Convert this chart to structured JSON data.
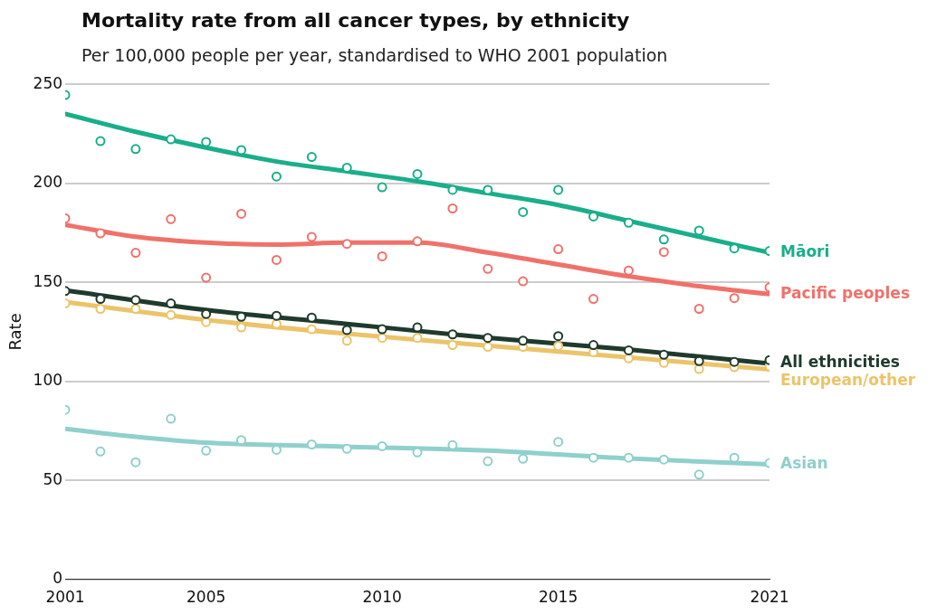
{
  "chart_data": {
    "type": "line",
    "title": "Mortality rate from all cancer types, by ethnicity",
    "subtitle": "Per 100,000 people per year, standardised to WHO 2001 population",
    "ylabel": "Rate",
    "x": [
      2001,
      2002,
      2003,
      2004,
      2005,
      2006,
      2007,
      2008,
      2009,
      2010,
      2011,
      2012,
      2013,
      2014,
      2015,
      2016,
      2017,
      2018,
      2019,
      2020,
      2021
    ],
    "xlim": [
      2001,
      2021
    ],
    "xticks": [
      2001,
      2005,
      2010,
      2015,
      2021
    ],
    "ylim": [
      0,
      250
    ],
    "yticks": [
      0,
      50,
      100,
      150,
      200,
      250
    ],
    "grid": "y",
    "legend": false,
    "series": [
      {
        "type": "scatter",
        "marker": "circle",
        "color": "#1aae8a",
        "values": [
          244.6,
          221.3,
          217.3,
          222.2,
          220.9,
          216.8,
          203.4,
          213.3,
          207.9,
          198.0,
          204.7,
          196.7,
          196.7,
          185.5,
          196.7,
          183.2,
          180.1,
          171.6,
          176.1,
          167.1,
          165.8
        ]
      },
      {
        "type": "scatter",
        "marker": "circle",
        "color": "#f0716a",
        "values": [
          182.3,
          174.7,
          164.9,
          181.9,
          152.3,
          184.6,
          161.3,
          172.9,
          169.4,
          163.1,
          170.7,
          187.3,
          156.8,
          150.5,
          166.7,
          141.6,
          155.9,
          165.3,
          136.6,
          142.0,
          147.4
        ]
      },
      {
        "type": "scatter",
        "marker": "circle",
        "color": "#1f3a2d",
        "values": [
          145.6,
          141.6,
          141.1,
          139.3,
          134.0,
          132.6,
          133.1,
          132.2,
          125.9,
          126.3,
          127.2,
          123.7,
          121.9,
          120.5,
          122.8,
          118.3,
          115.6,
          113.4,
          110.2,
          109.8,
          110.7
        ]
      },
      {
        "type": "scatter",
        "marker": "circle",
        "color": "#ebc46a",
        "values": [
          139.3,
          136.6,
          136.6,
          133.5,
          129.9,
          127.2,
          129.0,
          126.3,
          120.5,
          121.9,
          121.9,
          118.3,
          117.4,
          117.4,
          117.8,
          114.7,
          111.6,
          109.3,
          106.2,
          107.1,
          107.5
        ]
      },
      {
        "type": "scatter",
        "marker": "circle",
        "color": "#8fd0cc",
        "values": [
          85.6,
          64.5,
          59.1,
          81.1,
          65.0,
          70.3,
          65.4,
          68.1,
          65.9,
          67.2,
          64.1,
          67.7,
          59.6,
          60.9,
          69.4,
          61.4,
          61.4,
          60.5,
          52.9,
          61.4,
          58.7
        ]
      },
      {
        "type": "line",
        "marker": "none",
        "name": "Māori",
        "color": "#1aae8a",
        "x": [
          2001,
          2003,
          2005,
          2007,
          2009,
          2011,
          2013,
          2015,
          2017,
          2019,
          2021
        ],
        "values": [
          235,
          226,
          218,
          211,
          206,
          201,
          195,
          189,
          181,
          173,
          165
        ]
      },
      {
        "type": "line",
        "marker": "none",
        "name": "Pacific peoples",
        "color": "#f0716a",
        "x": [
          2001,
          2003,
          2005,
          2007,
          2009,
          2011,
          2013,
          2015,
          2017,
          2019,
          2021
        ],
        "values": [
          179,
          173,
          170,
          169,
          170,
          170,
          165,
          159,
          153,
          148,
          144
        ]
      },
      {
        "type": "line",
        "marker": "none",
        "name": "All ethnicities",
        "color": "#1f3a2d",
        "x": [
          2001,
          2005,
          2009,
          2013,
          2017,
          2021
        ],
        "values": [
          146,
          136,
          129,
          122,
          116,
          109
        ]
      },
      {
        "type": "line",
        "marker": "none",
        "name": "European/other",
        "color": "#ebc46a",
        "x": [
          2001,
          2005,
          2009,
          2013,
          2017,
          2021
        ],
        "values": [
          140,
          131,
          124,
          118,
          112,
          106
        ]
      },
      {
        "type": "line",
        "marker": "none",
        "name": "Asian",
        "color": "#8fd0cc",
        "x": [
          2001,
          2003,
          2005,
          2009,
          2013,
          2017,
          2021
        ],
        "values": [
          76,
          72,
          69,
          67,
          65,
          61,
          58
        ]
      }
    ]
  }
}
